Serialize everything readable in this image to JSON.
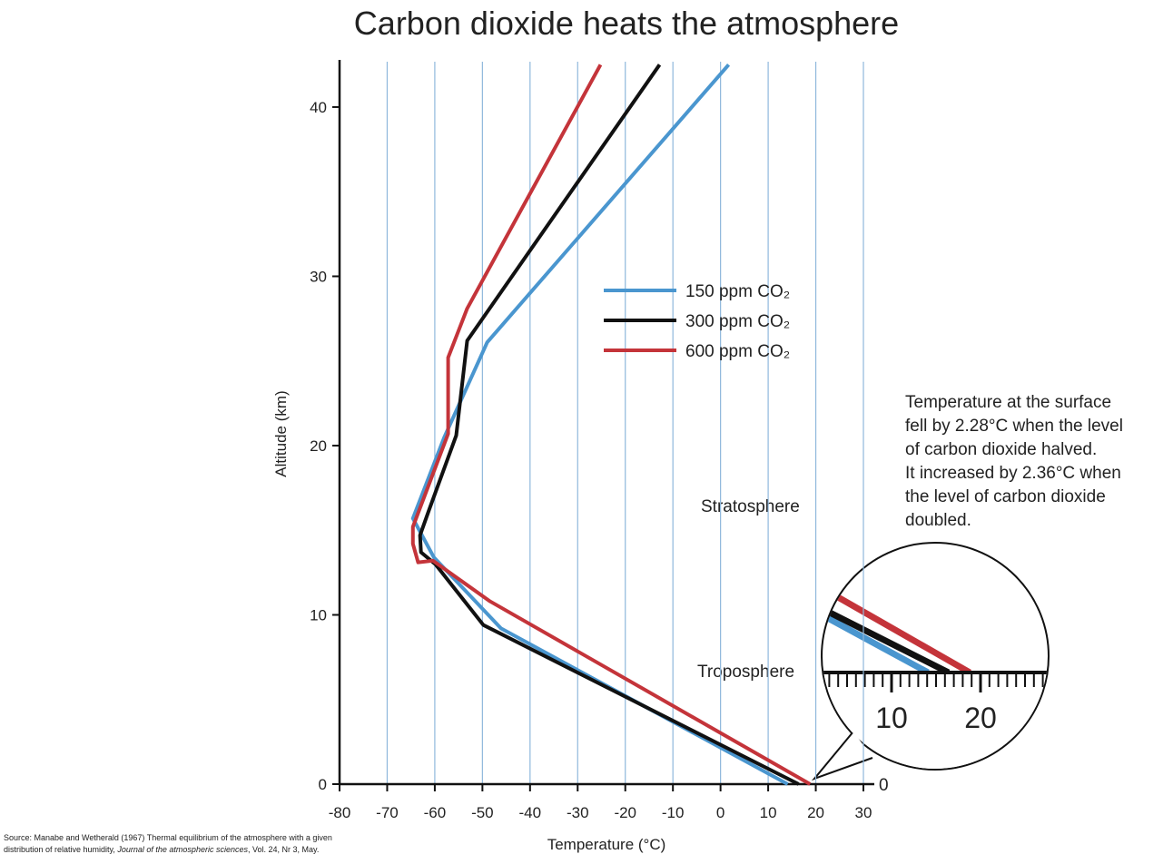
{
  "chart_data": {
    "type": "line",
    "title": "Carbon dioxide heats the atmosphere",
    "xlabel": "Temperature (°C)",
    "ylabel": "Altitude (km)",
    "xlim": [
      -80,
      30
    ],
    "ylim": [
      0,
      43
    ],
    "xticks": [
      -80,
      -70,
      -60,
      -50,
      -40,
      -30,
      -20,
      -10,
      0,
      10,
      20,
      30
    ],
    "yticks": [
      0,
      10,
      20,
      30,
      40
    ],
    "grid": true,
    "series": [
      {
        "name": "150 ppm CO₂",
        "color": "#4a96cf",
        "x": [
          14.1,
          -46.1,
          -60.2,
          -64.6,
          -58,
          -49,
          1.7
        ],
        "values": [
          0,
          9.2,
          13.4,
          15.7,
          20.5,
          26.1,
          42.5
        ]
      },
      {
        "name": "300 ppm CO₂",
        "color": "#111111",
        "x": [
          16.4,
          -49.8,
          -59.9,
          -62.9,
          -63.1,
          -61.2,
          -55.5,
          -53.2,
          -12.8
        ],
        "values": [
          0,
          9.4,
          13.0,
          13.7,
          14.7,
          16.2,
          20.6,
          26.2,
          42.5
        ]
      },
      {
        "name": "600 ppm CO₂",
        "color": "#c4343a",
        "x": [
          18.8,
          -48.4,
          -60.4,
          -63.5,
          -64.6,
          -64.6,
          -57.2,
          -57.2,
          -53.2,
          -25.2
        ],
        "values": [
          0,
          10.8,
          13.2,
          13.1,
          14.2,
          15.2,
          20.7,
          25.2,
          28.1,
          42.5
        ]
      }
    ],
    "annotations": {
      "stratosphere": "Stratosphere",
      "troposphere": "Troposphere",
      "note": [
        "Temperature at the surface",
        "fell by 2.28°C when the level",
        "of carbon dioxide halved.",
        "It increased by 2.36°C when",
        "the level of carbon dioxide",
        "doubled."
      ]
    },
    "inset": {
      "baseline": 0,
      "ruler_ticks": [
        10,
        20
      ]
    },
    "source": [
      "Source: Manabe and Wetherald (1967) Thermal equilibrium of the atmosphere with a given",
      "distribution of relative humidity, ",
      "Journal of the atmospheric sciences",
      ", Vol. 24, Nr 3, May."
    ]
  }
}
